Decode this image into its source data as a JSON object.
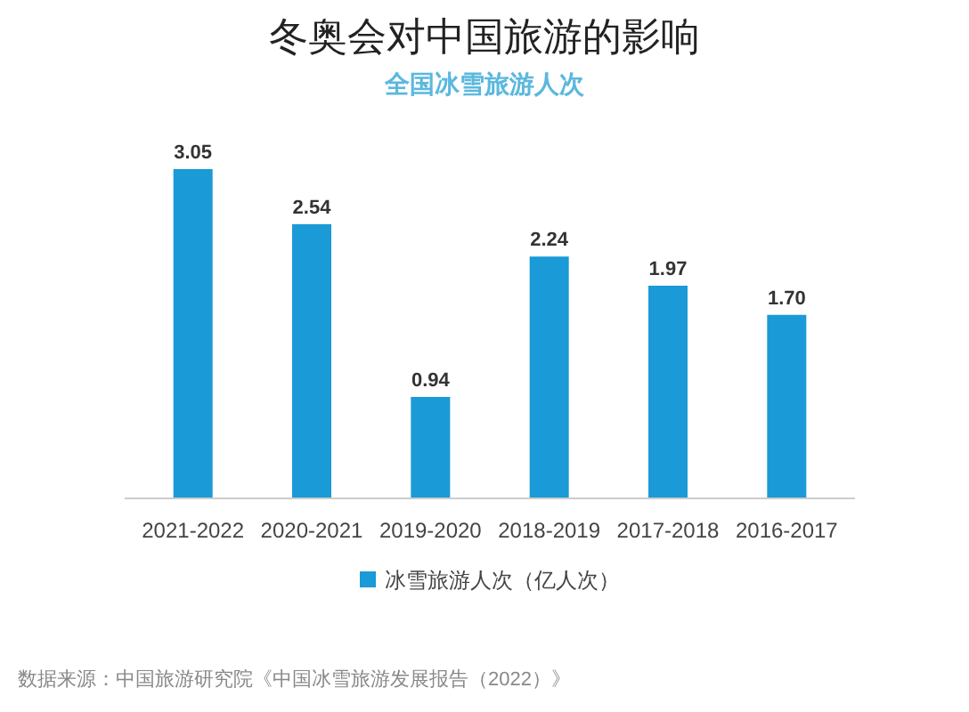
{
  "chart_data": {
    "type": "bar",
    "title": "冬奥会对中国旅游的影响",
    "subtitle": "全国冰雪旅游人次",
    "categories": [
      "2021-2022",
      "2020-2021",
      "2019-2020",
      "2018-2019",
      "2017-2018",
      "2016-2017"
    ],
    "series": [
      {
        "name": "冰雪旅游人次（亿人次）",
        "color": "#1a9ad6",
        "values": [
          3.05,
          2.54,
          0.94,
          2.24,
          1.97,
          1.7
        ],
        "value_labels": [
          "3.05",
          "2.54",
          "0.94",
          "2.24",
          "1.97",
          "1.70"
        ]
      }
    ],
    "legend": "bottom",
    "annotations": [
      "数据来源：中国旅游研究院《中国冰雪旅游发展报告（2022）》"
    ]
  }
}
